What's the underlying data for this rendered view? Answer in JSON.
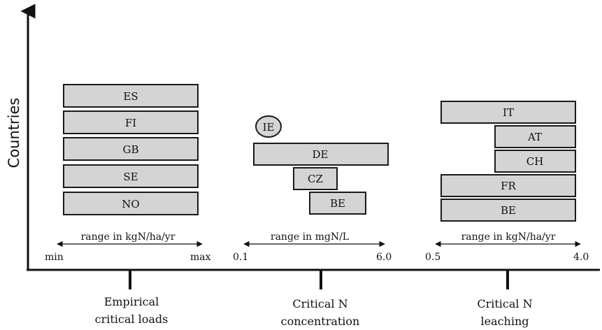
{
  "axis": {
    "y_label": "Countries"
  },
  "groups": [
    {
      "key": "empirical",
      "title_lines": [
        "Empirical",
        "critical loads"
      ],
      "range_label": "range in kgN/ha/yr",
      "min_label": "min",
      "max_label": "max",
      "items": [
        "ES",
        "FI",
        "GB",
        "SE",
        "NO"
      ]
    },
    {
      "key": "concentration",
      "title_lines": [
        "Critical N",
        "concentration"
      ],
      "range_label": "range in mgN/L",
      "min_label": "0.1",
      "max_label": "6.0",
      "items": [
        "IE",
        "DE",
        "CZ",
        "BE"
      ]
    },
    {
      "key": "leaching",
      "title_lines": [
        "Critical N",
        "leaching"
      ],
      "range_label": "range in kgN/ha/yr",
      "min_label": "0.5",
      "max_label": "4.0",
      "items": [
        "IT",
        "AT",
        "CH",
        "FR",
        "BE"
      ]
    }
  ]
}
